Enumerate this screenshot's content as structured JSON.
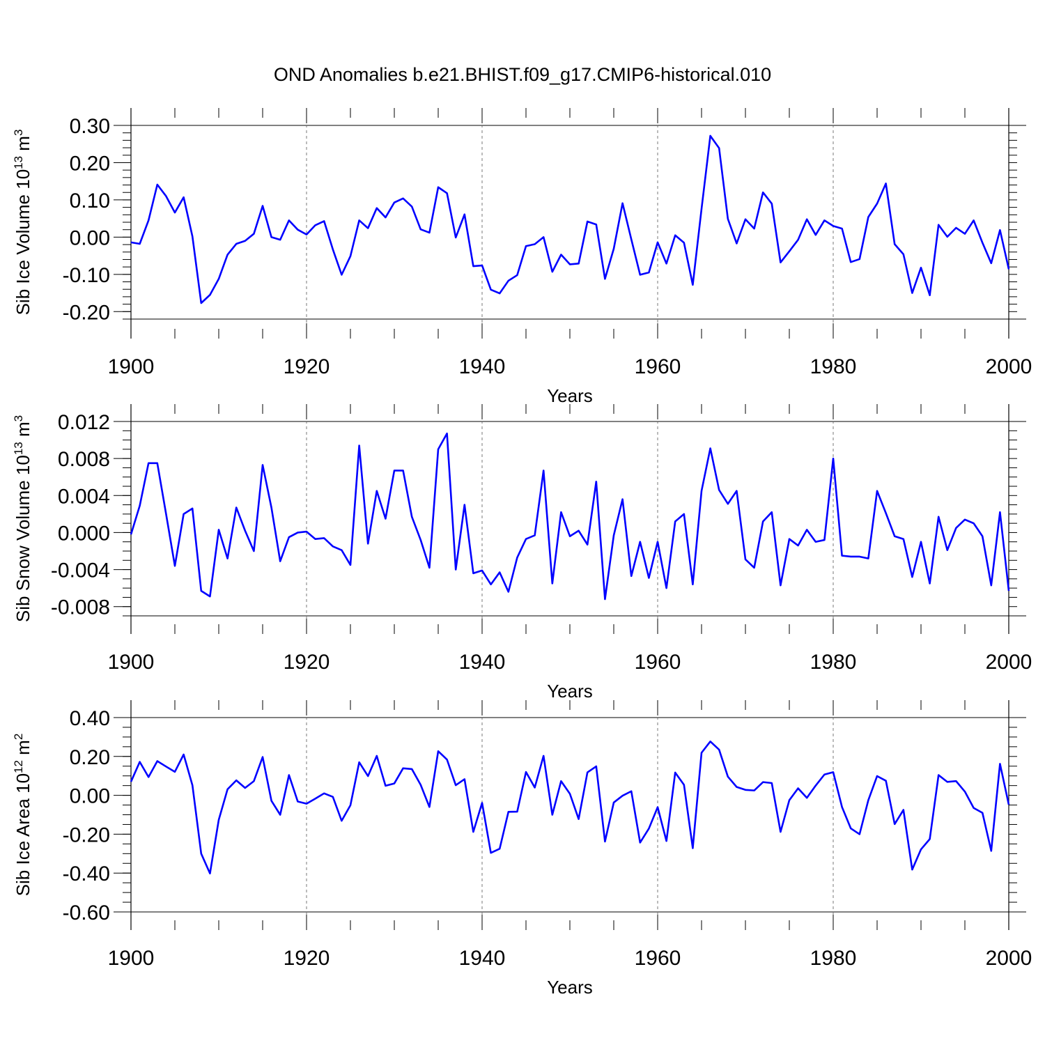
{
  "figure": {
    "title": "OND Anomalies b.e21.BHIST.f09_g17.CMIP6-historical.010",
    "line_color": "#0000ff"
  },
  "chart_data": [
    {
      "type": "line",
      "name": "ice-volume",
      "xlabel": "Years",
      "ylabel_main": "Sib Ice Volume 10",
      "ylabel_sup1": "13",
      "ylabel_unit": " m",
      "ylabel_sup2": "3",
      "xlim": [
        1900,
        2000
      ],
      "ylim": [
        -0.22,
        0.3
      ],
      "xticks": [
        1900,
        1920,
        1940,
        1960,
        1980,
        2000
      ],
      "xtick_labels": [
        "1900",
        "1920",
        "1940",
        "1960",
        "1980",
        "2000"
      ],
      "yticks": [
        -0.2,
        -0.1,
        0.0,
        0.1,
        0.2,
        0.3
      ],
      "ytick_labels": [
        "-0.20",
        "-0.10",
        "0.00",
        "0.10",
        "0.20",
        "0.30"
      ],
      "yminor": 0.02,
      "x_start": 1900,
      "values": [
        -0.014,
        -0.018,
        0.045,
        0.141,
        0.11,
        0.066,
        0.107,
        0.002,
        -0.177,
        -0.155,
        -0.112,
        -0.047,
        -0.018,
        -0.01,
        0.009,
        0.084,
        0.0,
        -0.007,
        0.045,
        0.02,
        0.007,
        0.032,
        0.043,
        -0.033,
        -0.101,
        -0.051,
        0.045,
        0.024,
        0.078,
        0.053,
        0.093,
        0.104,
        0.082,
        0.021,
        0.012,
        0.134,
        0.118,
        -0.001,
        0.061,
        -0.078,
        -0.076,
        -0.141,
        -0.151,
        -0.117,
        -0.102,
        -0.024,
        -0.019,
        0.0,
        -0.093,
        -0.047,
        -0.073,
        -0.071,
        0.042,
        0.034,
        -0.112,
        -0.031,
        0.091,
        -0.006,
        -0.101,
        -0.095,
        -0.014,
        -0.071,
        0.005,
        -0.015,
        -0.128,
        0.076,
        0.272,
        0.239,
        0.049,
        -0.017,
        0.048,
        0.023,
        0.12,
        0.09,
        -0.068,
        -0.038,
        -0.007,
        0.048,
        0.006,
        0.045,
        0.03,
        0.023,
        -0.067,
        -0.059,
        0.054,
        0.09,
        0.144,
        -0.019,
        -0.046,
        -0.15,
        -0.082,
        -0.156,
        0.033,
        0.001,
        0.025,
        0.009,
        0.045,
        -0.015,
        -0.07,
        0.019,
        -0.086
      ]
    },
    {
      "type": "line",
      "name": "snow-volume",
      "xlabel": "Years",
      "ylabel_main": "Sib Snow Volume 10",
      "ylabel_sup1": "13",
      "ylabel_unit": " m",
      "ylabel_sup2": "3",
      "xlim": [
        1900,
        2000
      ],
      "ylim": [
        -0.009,
        0.012
      ],
      "xticks": [
        1900,
        1920,
        1940,
        1960,
        1980,
        2000
      ],
      "xtick_labels": [
        "1900",
        "1920",
        "1940",
        "1960",
        "1980",
        "2000"
      ],
      "yticks": [
        -0.008,
        -0.004,
        0.0,
        0.004,
        0.008,
        0.012
      ],
      "ytick_labels": [
        "-0.008",
        "-0.004",
        "0.000",
        "0.004",
        "0.008",
        "0.012"
      ],
      "yminor": 0.001,
      "x_start": 1900,
      "values": [
        -0.0002,
        0.0029,
        0.0075,
        0.0075,
        0.002,
        -0.0036,
        0.002,
        0.0026,
        -0.0063,
        -0.0069,
        0.0003,
        -0.0028,
        0.0027,
        0.0002,
        -0.002,
        0.0073,
        0.0027,
        -0.0031,
        -0.0005,
        0.0,
        0.0001,
        -0.0007,
        -0.0006,
        -0.0015,
        -0.0019,
        -0.0035,
        0.0094,
        -0.0012,
        0.0045,
        0.0015,
        0.0067,
        0.0067,
        0.0017,
        -0.0008,
        -0.0038,
        0.009,
        0.0107,
        -0.004,
        0.003,
        -0.0044,
        -0.0041,
        -0.0056,
        -0.0043,
        -0.0064,
        -0.0027,
        -0.0007,
        -0.0003,
        0.0067,
        -0.0055,
        0.0022,
        -0.0004,
        0.0002,
        -0.0013,
        0.0055,
        -0.0072,
        -0.0003,
        0.0036,
        -0.0047,
        -0.001,
        -0.0049,
        -0.001,
        -0.006,
        0.0012,
        0.002,
        -0.0056,
        0.0045,
        0.0091,
        0.0046,
        0.0031,
        0.0045,
        -0.0029,
        -0.0038,
        0.0012,
        0.0022,
        -0.0057,
        -0.0007,
        -0.0014,
        0.0003,
        -0.001,
        -0.0008,
        0.008,
        -0.0025,
        -0.0026,
        -0.0026,
        -0.0028,
        0.0045,
        0.0021,
        -0.0004,
        -0.0007,
        -0.0048,
        -0.001,
        -0.0055,
        0.0017,
        -0.0019,
        0.0005,
        0.0014,
        0.001,
        -0.0004,
        -0.0057,
        0.0022,
        -0.0063
      ]
    },
    {
      "type": "line",
      "name": "ice-area",
      "xlabel": "Years",
      "ylabel_main": "Sib Ice Area 10",
      "ylabel_sup1": "12",
      "ylabel_unit": " m",
      "ylabel_sup2": "2",
      "xlim": [
        1900,
        2000
      ],
      "ylim": [
        -0.6,
        0.4
      ],
      "xticks": [
        1900,
        1920,
        1940,
        1960,
        1980,
        2000
      ],
      "xtick_labels": [
        "1900",
        "1920",
        "1940",
        "1960",
        "1980",
        "2000"
      ],
      "yticks": [
        -0.6,
        -0.4,
        -0.2,
        0.0,
        0.2,
        0.4
      ],
      "ytick_labels": [
        "-0.60",
        "-0.40",
        "-0.20",
        "0.00",
        "0.20",
        "0.40"
      ],
      "yminor": 0.05,
      "x_start": 1900,
      "values": [
        0.07,
        0.172,
        0.094,
        0.176,
        0.148,
        0.121,
        0.21,
        0.052,
        -0.3,
        -0.402,
        -0.126,
        0.031,
        0.077,
        0.038,
        0.073,
        0.197,
        -0.028,
        -0.1,
        0.104,
        -0.032,
        -0.043,
        -0.017,
        0.01,
        -0.008,
        -0.131,
        -0.051,
        0.17,
        0.099,
        0.203,
        0.049,
        0.061,
        0.139,
        0.135,
        0.054,
        -0.06,
        0.227,
        0.184,
        0.052,
        0.083,
        -0.188,
        -0.039,
        -0.296,
        -0.275,
        -0.085,
        -0.084,
        0.12,
        0.04,
        0.203,
        -0.1,
        0.073,
        0.008,
        -0.122,
        0.118,
        0.149,
        -0.238,
        -0.037,
        -0.002,
        0.021,
        -0.243,
        -0.171,
        -0.061,
        -0.235,
        0.117,
        0.054,
        -0.272,
        0.219,
        0.277,
        0.235,
        0.096,
        0.043,
        0.028,
        0.025,
        0.068,
        0.063,
        -0.188,
        -0.025,
        0.036,
        -0.013,
        0.05,
        0.107,
        0.119,
        -0.06,
        -0.17,
        -0.2,
        -0.025,
        0.099,
        0.075,
        -0.148,
        -0.075,
        -0.382,
        -0.278,
        -0.225,
        0.104,
        0.069,
        0.073,
        0.019,
        -0.065,
        -0.09,
        -0.286,
        0.162,
        -0.048
      ]
    }
  ]
}
